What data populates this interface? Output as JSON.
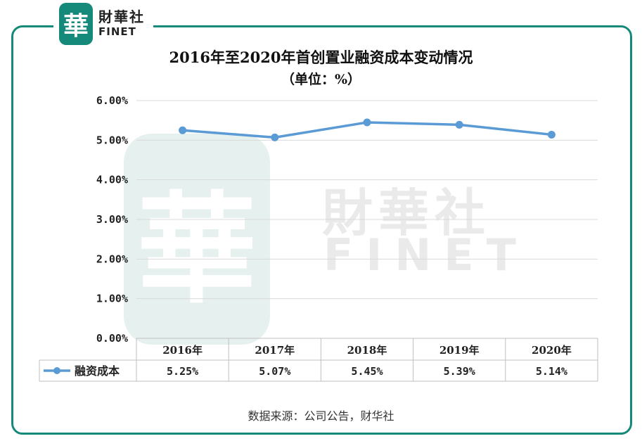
{
  "brand": {
    "logo_char": "華",
    "name_cn": "財華社",
    "name_en": "FINET",
    "frame_color": "#168a7a"
  },
  "watermark": {
    "logo_char": "華",
    "name_cn": "財華社",
    "name_en": "FINET"
  },
  "chart_data": {
    "type": "line",
    "title": "2016年至2020年首创置业融资成本变动情况",
    "subtitle": "（单位：%）",
    "categories": [
      "2016年",
      "2017年",
      "2018年",
      "2019年",
      "2020年"
    ],
    "series": [
      {
        "name": "融资成本",
        "values": [
          5.25,
          5.07,
          5.45,
          5.39,
          5.14
        ],
        "labels": [
          "5.25%",
          "5.07%",
          "5.45%",
          "5.39%",
          "5.14%"
        ],
        "color": "#5b9bd5"
      }
    ],
    "ylim": [
      0,
      6
    ],
    "yticks": [
      "0.00%",
      "1.00%",
      "2.00%",
      "3.00%",
      "4.00%",
      "5.00%",
      "6.00%"
    ],
    "grid": true,
    "legend": "data-table"
  },
  "source": "数据来源：公司公告，财华社"
}
